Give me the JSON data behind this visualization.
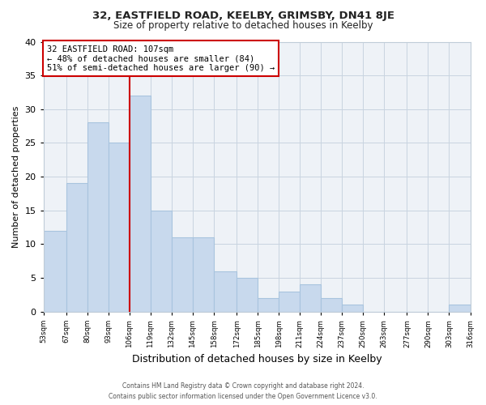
{
  "title_line1": "32, EASTFIELD ROAD, KEELBY, GRIMSBY, DN41 8JE",
  "title_line2": "Size of property relative to detached houses in Keelby",
  "xlabel": "Distribution of detached houses by size in Keelby",
  "ylabel": "Number of detached properties",
  "bar_edges": [
    53,
    67,
    80,
    93,
    106,
    119,
    132,
    145,
    158,
    172,
    185,
    198,
    211,
    224,
    237,
    250,
    263,
    277,
    290,
    303,
    316
  ],
  "bar_heights": [
    12,
    19,
    28,
    25,
    32,
    15,
    11,
    11,
    6,
    5,
    2,
    3,
    4,
    2,
    1,
    0,
    0,
    0,
    0,
    1
  ],
  "bar_color": "#c8d9ed",
  "bar_edgecolor": "#a8c4de",
  "reference_line_x": 106,
  "reference_box_text": "32 EASTFIELD ROAD: 107sqm\n← 48% of detached houses are smaller (84)\n51% of semi-detached houses are larger (90) →",
  "reference_box_color": "#ffffff",
  "reference_box_edgecolor": "#cc0000",
  "reference_line_color": "#cc0000",
  "ylim": [
    0,
    40
  ],
  "tick_labels": [
    "53sqm",
    "67sqm",
    "80sqm",
    "93sqm",
    "106sqm",
    "119sqm",
    "132sqm",
    "145sqm",
    "158sqm",
    "172sqm",
    "185sqm",
    "198sqm",
    "211sqm",
    "224sqm",
    "237sqm",
    "250sqm",
    "263sqm",
    "277sqm",
    "290sqm",
    "303sqm",
    "316sqm"
  ],
  "footer_line1": "Contains HM Land Registry data © Crown copyright and database right 2024.",
  "footer_line2": "Contains public sector information licensed under the Open Government Licence v3.0.",
  "bg_color": "#eef2f7"
}
